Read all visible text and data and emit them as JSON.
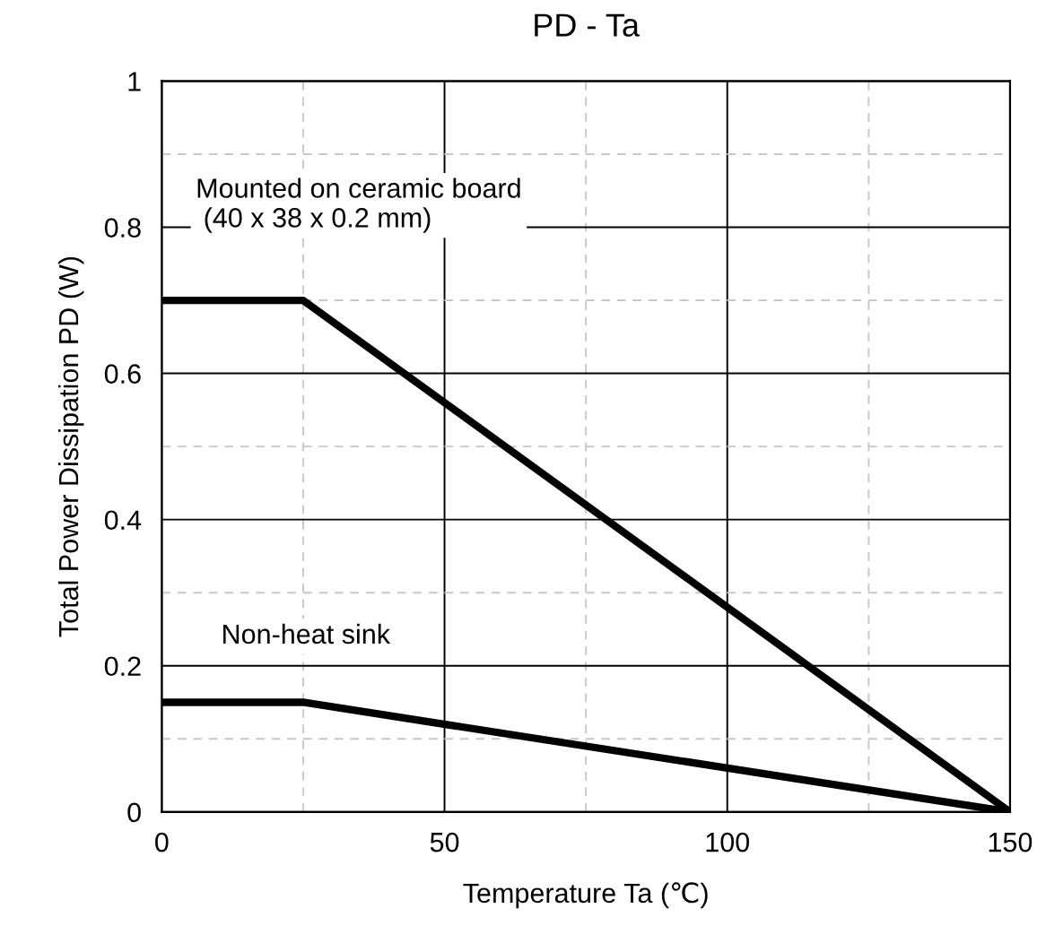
{
  "chart_data": {
    "type": "line",
    "title": "PD - Ta",
    "xlabel": "Temperature Ta (℃)",
    "ylabel": "Total Power Dissipation PD (W)",
    "series": [
      {
        "color": "#000000",
        "x": [
          0,
          25,
          150
        ],
        "values": [
          0.7,
          0.7,
          0
        ]
      },
      {
        "color": "#000000",
        "x": [
          0,
          25,
          150
        ],
        "values": [
          0.15,
          0.15,
          0
        ]
      }
    ],
    "xlim": [
      0,
      150
    ],
    "ylim": [
      0,
      1
    ],
    "xticks": [
      0,
      {
        "value": 25,
        "label": null
      },
      50,
      {
        "value": 75,
        "label": null
      },
      100,
      {
        "value": 125,
        "label": null
      },
      150
    ],
    "yticks": [
      0,
      {
        "value": 0.1,
        "label": null
      },
      0.2,
      {
        "value": 0.3,
        "label": null
      },
      0.4,
      {
        "value": 0.5,
        "label": null
      },
      0.6,
      {
        "value": 0.7,
        "label": null
      },
      0.8,
      {
        "value": 0.9,
        "label": null
      },
      1
    ],
    "grid": true,
    "marker": "none",
    "line_style": "solid",
    "annotations": [
      "Mounted on ceramic board\n (40 x 38 x 0.2 mm)",
      "Non-heat sink"
    ]
  }
}
